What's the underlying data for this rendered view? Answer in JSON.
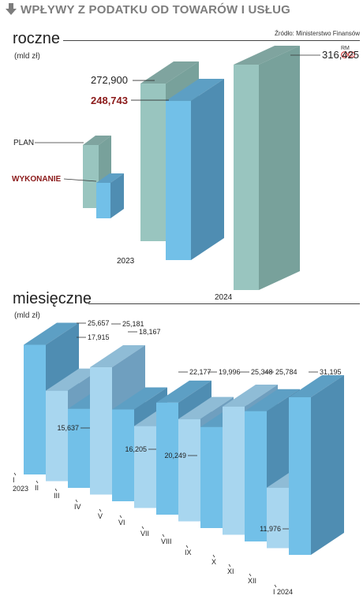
{
  "header": {
    "title": "WPŁYWY Z PODATKU OD TOWARÓW I USŁUG",
    "icon": "arrow-down-icon"
  },
  "source": "Źródło: Ministerstwo Finansów",
  "credit": {
    "initials": "RM",
    "logo": "copyright-p-icon"
  },
  "colors": {
    "plan_front": "#99c5bf",
    "plan_top": "#7fa49f",
    "plan_side": "#78a19b",
    "exec_front": "#72c0e8",
    "exec_top": "#5d9fc4",
    "exec_side": "#4f8db2",
    "light_front": "#a8d6ef",
    "light_top": "#8fbcd6",
    "light_side": "#6f9fbf",
    "highlight": "#8b1a1a"
  },
  "annual": {
    "title": "roczne",
    "unit": "(mld zł)",
    "legend": {
      "plan": "PLAN",
      "execution": "WYKONANIE"
    }
  },
  "monthly": {
    "title": "miesięczne",
    "unit": "(mld zł)"
  },
  "chart_data": [
    {
      "type": "bar",
      "title": "roczne",
      "ylabel": "(mld zł)",
      "categories": [
        "2023",
        "2024"
      ],
      "series": [
        {
          "name": "PLAN",
          "values": [
            272.9,
            316.425
          ],
          "labels": [
            "272,900",
            "316,425"
          ]
        },
        {
          "name": "WYKONANIE",
          "values": [
            248.743,
            null
          ],
          "labels": [
            "248,743",
            ""
          ]
        }
      ]
    },
    {
      "type": "bar",
      "title": "miesięczne",
      "ylabel": "(mld zł)",
      "categories": [
        "I\n2023",
        "II",
        "III",
        "IV",
        "V",
        "VI",
        "VII",
        "VIII",
        "IX",
        "X",
        "XI",
        "XII",
        "I 2024"
      ],
      "values": [
        25.657,
        17.915,
        15.637,
        25.181,
        18.167,
        16.205,
        22.177,
        20.249,
        19.996,
        25.348,
        25.784,
        11.976,
        31.195
      ],
      "labels": [
        "25,657",
        "17,915",
        "15,637",
        "25,181",
        "18,167",
        "16,205",
        "22,177",
        "20,249",
        "19,996",
        "25,348",
        "25,784",
        "11,976",
        "31,195"
      ]
    }
  ]
}
